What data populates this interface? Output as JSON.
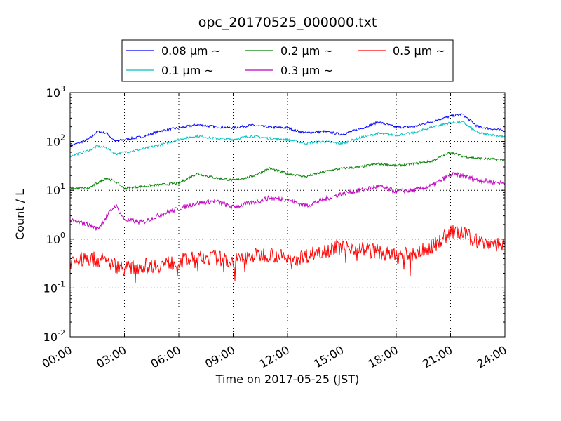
{
  "chart_data": {
    "type": "line",
    "title": "opc_20170525_000000.txt",
    "xlabel": "Time on 2017-05-25 (JST)",
    "ylabel": "Count / L",
    "y_scale": "log",
    "ylim": [
      0.01,
      1000
    ],
    "xlim": [
      "00:00",
      "24:00"
    ],
    "grid": true,
    "legend_position": "top-center",
    "x_ticks": [
      "00:00",
      "03:00",
      "06:00",
      "09:00",
      "12:00",
      "15:00",
      "18:00",
      "21:00",
      "24:00"
    ],
    "y_ticks": [
      {
        "base": "10",
        "exp": "-2"
      },
      {
        "base": "10",
        "exp": "-1"
      },
      {
        "base": "10",
        "exp": "0"
      },
      {
        "base": "10",
        "exp": "1"
      },
      {
        "base": "10",
        "exp": "2"
      },
      {
        "base": "10",
        "exp": "3"
      }
    ],
    "series": [
      {
        "name": "0.08 μm ~",
        "color": "#0000ff",
        "x": [
          "00:00",
          "01:00",
          "01:30",
          "02:00",
          "02:30",
          "03:00",
          "04:00",
          "05:00",
          "06:00",
          "07:00",
          "08:00",
          "09:00",
          "10:00",
          "11:00",
          "12:00",
          "12:30",
          "13:00",
          "14:00",
          "15:00",
          "16:00",
          "17:00",
          "18:00",
          "19:00",
          "20:00",
          "21:00",
          "21:40",
          "22:30",
          "24:00"
        ],
        "y": [
          80,
          110,
          160,
          150,
          100,
          110,
          125,
          165,
          190,
          220,
          200,
          190,
          215,
          195,
          190,
          165,
          150,
          160,
          140,
          180,
          250,
          195,
          200,
          260,
          330,
          360,
          200,
          165
        ]
      },
      {
        "name": "0.1 μm ~",
        "color": "#00bfbf",
        "x": [
          "00:00",
          "01:00",
          "01:30",
          "02:00",
          "02:30",
          "03:00",
          "04:00",
          "05:00",
          "06:00",
          "07:00",
          "08:00",
          "09:00",
          "10:00",
          "11:00",
          "12:00",
          "12:30",
          "13:00",
          "14:00",
          "15:00",
          "16:00",
          "17:00",
          "18:00",
          "19:00",
          "20:00",
          "21:00",
          "21:40",
          "22:30",
          "24:00"
        ],
        "y": [
          50,
          65,
          80,
          75,
          55,
          60,
          70,
          85,
          110,
          130,
          115,
          110,
          130,
          115,
          110,
          100,
          92,
          100,
          90,
          120,
          145,
          135,
          150,
          200,
          240,
          250,
          150,
          125
        ]
      },
      {
        "name": "0.2 μm ~",
        "color": "#008000",
        "x": [
          "00:00",
          "01:00",
          "02:00",
          "02:30",
          "03:00",
          "04:00",
          "05:00",
          "06:00",
          "07:00",
          "08:00",
          "09:00",
          "10:00",
          "11:00",
          "12:00",
          "13:00",
          "14:00",
          "15:00",
          "16:00",
          "17:00",
          "18:00",
          "19:00",
          "20:00",
          "21:00",
          "21:40",
          "22:30",
          "24:00"
        ],
        "y": [
          11,
          11,
          18,
          15,
          11,
          12,
          13,
          14,
          22,
          18,
          16,
          19,
          28,
          22,
          19,
          24,
          28,
          30,
          35,
          32,
          35,
          40,
          60,
          50,
          45,
          42
        ]
      },
      {
        "name": "0.3 μm ~",
        "color": "#bf00bf",
        "x": [
          "00:00",
          "01:00",
          "01:30",
          "02:30",
          "03:00",
          "04:00",
          "05:00",
          "06:00",
          "07:00",
          "08:00",
          "09:00",
          "10:00",
          "11:00",
          "12:00",
          "13:00",
          "14:00",
          "15:00",
          "16:00",
          "17:00",
          "18:00",
          "19:00",
          "20:00",
          "21:00",
          "21:40",
          "22:30",
          "24:00"
        ],
        "y": [
          2.4,
          2.0,
          1.6,
          5.0,
          2.5,
          2.2,
          3.2,
          4.2,
          5.5,
          6.0,
          4.5,
          5.5,
          7.0,
          6.5,
          4.8,
          6.5,
          8.5,
          10,
          12,
          9.5,
          10,
          12.5,
          21,
          20,
          16,
          14
        ]
      },
      {
        "name": "0.5 μm ~",
        "color": "#ff0000",
        "x": [
          "00:00",
          "01:00",
          "02:00",
          "03:00",
          "04:00",
          "05:00",
          "06:00",
          "07:00",
          "08:00",
          "09:00",
          "10:00",
          "11:00",
          "12:00",
          "13:00",
          "14:00",
          "15:00",
          "16:00",
          "17:00",
          "18:00",
          "19:00",
          "20:00",
          "21:00",
          "21:40",
          "22:30",
          "24:00"
        ],
        "y": [
          0.35,
          0.4,
          0.35,
          0.25,
          0.28,
          0.3,
          0.35,
          0.4,
          0.42,
          0.35,
          0.45,
          0.5,
          0.4,
          0.45,
          0.6,
          0.7,
          0.65,
          0.55,
          0.45,
          0.5,
          0.7,
          1.4,
          1.3,
          0.9,
          0.75
        ]
      }
    ]
  }
}
